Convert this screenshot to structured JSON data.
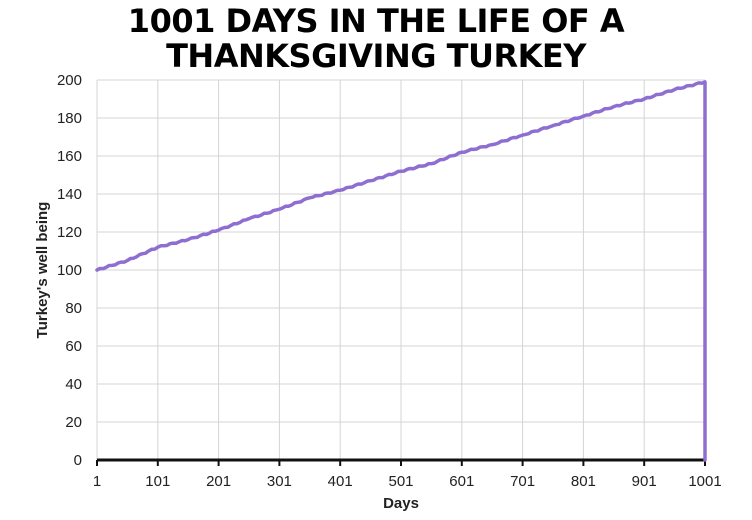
{
  "chart_data": {
    "type": "line",
    "title_lines": [
      "1001 DAYS IN THE LIFE OF A",
      "THANKSGIVING TURKEY"
    ],
    "xlabel": "Days",
    "ylabel": "Turkey's well being",
    "xlim": [
      1,
      1001
    ],
    "ylim": [
      0,
      200
    ],
    "x_ticks": [
      "1",
      "101",
      "201",
      "301",
      "401",
      "501",
      "601",
      "701",
      "801",
      "901",
      "1001"
    ],
    "y_ticks": [
      "0",
      "20",
      "40",
      "60",
      "80",
      "100",
      "120",
      "140",
      "160",
      "180",
      "200"
    ],
    "grid": true,
    "line_color": "#8e6fd1",
    "series": [
      {
        "x": [
          1,
          51,
          101,
          151,
          201,
          251,
          301,
          351,
          401,
          451,
          501,
          551,
          601,
          651,
          701,
          751,
          801,
          851,
          901,
          951,
          1001,
          1001
        ],
        "y": [
          100,
          105,
          112,
          116,
          121,
          127,
          132,
          138,
          142,
          147,
          152,
          156,
          162,
          166,
          171,
          176,
          181,
          186,
          190,
          195,
          199,
          0
        ]
      }
    ]
  }
}
